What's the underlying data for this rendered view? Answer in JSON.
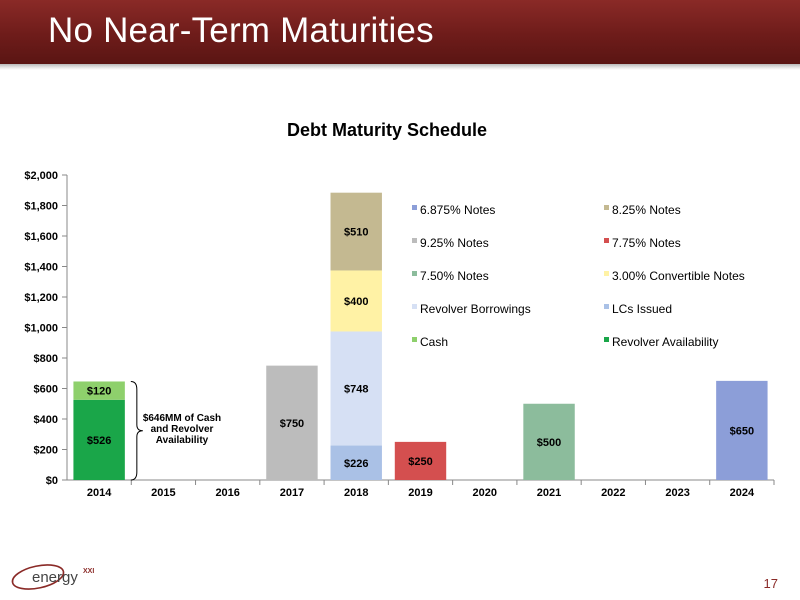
{
  "page": {
    "title": "No Near-Term Maturities",
    "page_number": "17",
    "logo_text": "energy",
    "logo_superscript": "XXI"
  },
  "annotation": {
    "lines": [
      "$646MM of Cash",
      "and Revolver",
      "Availability"
    ]
  },
  "chart_data": {
    "type": "bar",
    "stacked": true,
    "title": "Debt Maturity Schedule",
    "categories": [
      "2014",
      "2015",
      "2016",
      "2017",
      "2018",
      "2019",
      "2020",
      "2021",
      "2022",
      "2023",
      "2024"
    ],
    "ylim": [
      0,
      2000
    ],
    "yticks": [
      "$0",
      "$200",
      "$400",
      "$600",
      "$800",
      "$1,000",
      "$1,200",
      "$1,400",
      "$1,600",
      "$1,800",
      "$2,000"
    ],
    "grid": false,
    "legend_position": "top-right",
    "series": [
      {
        "name": "6.875% Notes",
        "color": "#8c9ed8",
        "values": [
          0,
          0,
          0,
          0,
          0,
          0,
          0,
          0,
          0,
          0,
          650
        ],
        "labels": [
          "",
          "",
          "",
          "",
          "",
          "",
          "",
          "",
          "",
          "",
          "$650"
        ]
      },
      {
        "name": "8.25% Notes",
        "color": "#c4b991",
        "values": [
          0,
          0,
          0,
          0,
          510,
          0,
          0,
          0,
          0,
          0,
          0
        ],
        "labels": [
          "",
          "",
          "",
          "",
          "$510",
          "",
          "",
          "",
          "",
          "",
          ""
        ]
      },
      {
        "name": "9.25% Notes",
        "color": "#bcbcbc",
        "values": [
          0,
          0,
          0,
          750,
          0,
          0,
          0,
          0,
          0,
          0,
          0
        ],
        "labels": [
          "",
          "",
          "",
          "$750",
          "",
          "",
          "",
          "",
          "",
          "",
          ""
        ]
      },
      {
        "name": "7.75% Notes",
        "color": "#d44f4f",
        "values": [
          0,
          0,
          0,
          0,
          0,
          250,
          0,
          0,
          0,
          0,
          0
        ],
        "labels": [
          "",
          "",
          "",
          "",
          "",
          "$250",
          "",
          "",
          "",
          "",
          ""
        ]
      },
      {
        "name": "7.50% Notes",
        "color": "#8cbc9c",
        "values": [
          0,
          0,
          0,
          0,
          0,
          0,
          0,
          500,
          0,
          0,
          0
        ],
        "labels": [
          "",
          "",
          "",
          "",
          "",
          "",
          "",
          "$500",
          "",
          "",
          ""
        ]
      },
      {
        "name": "3.00% Convertible Notes",
        "color": "#fff2a5",
        "values": [
          0,
          0,
          0,
          0,
          400,
          0,
          0,
          0,
          0,
          0,
          0
        ],
        "labels": [
          "",
          "",
          "",
          "",
          "$400",
          "",
          "",
          "",
          "",
          "",
          ""
        ]
      },
      {
        "name": "Revolver Borrowings",
        "color": "#d6e0f4",
        "values": [
          0,
          0,
          0,
          0,
          748,
          0,
          0,
          0,
          0,
          0,
          0
        ],
        "labels": [
          "",
          "",
          "",
          "",
          "$748",
          "",
          "",
          "",
          "",
          "",
          ""
        ]
      },
      {
        "name": "LCs Issued",
        "color": "#aac1e6",
        "values": [
          0,
          0,
          0,
          0,
          226,
          0,
          0,
          0,
          0,
          0,
          0
        ],
        "labels": [
          "",
          "",
          "",
          "",
          "$226",
          "",
          "",
          "",
          "",
          "",
          ""
        ]
      },
      {
        "name": "Cash",
        "color": "#8ed06c",
        "values": [
          120,
          0,
          0,
          0,
          0,
          0,
          0,
          0,
          0,
          0,
          0
        ],
        "labels": [
          "$120",
          "",
          "",
          "",
          "",
          "",
          "",
          "",
          "",
          "",
          ""
        ]
      },
      {
        "name": "Revolver Availability",
        "color": "#1aa649",
        "values": [
          526,
          0,
          0,
          0,
          0,
          0,
          0,
          0,
          0,
          0,
          0
        ],
        "labels": [
          "$526",
          "",
          "",
          "",
          "",
          "",
          "",
          "",
          "",
          "",
          ""
        ]
      }
    ],
    "stack_order": [
      "Revolver Availability",
      "Cash",
      "LCs Issued",
      "Revolver Borrowings",
      "3.00% Convertible Notes",
      "8.25% Notes",
      "9.25% Notes",
      "7.75% Notes",
      "7.50% Notes",
      "6.875% Notes"
    ]
  }
}
